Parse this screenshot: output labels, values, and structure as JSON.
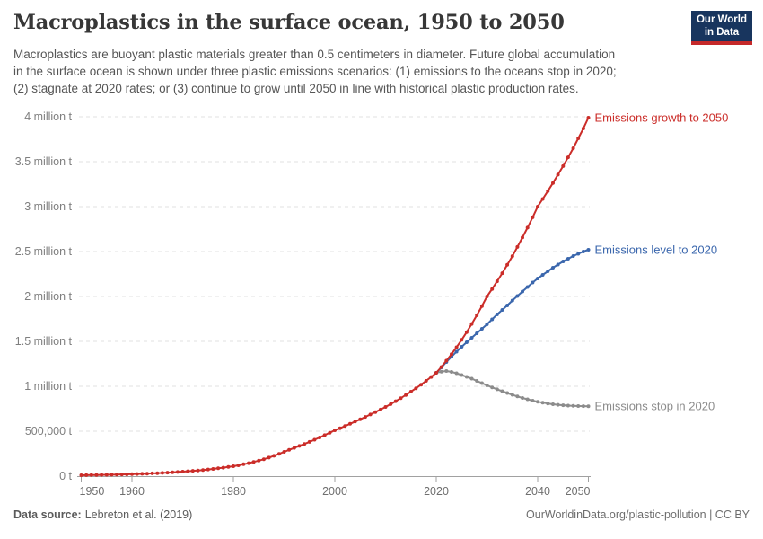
{
  "header": {
    "title": "Macroplastics in the surface ocean, 1950 to 2050",
    "subtitle": "Macroplastics are buoyant plastic materials greater than 0.5 centimeters in diameter. Future global accumulation\nin the surface ocean is shown under three plastic emissions scenarios: (1) emissions to the oceans stop in 2020;\n(2) stagnate at 2020 rates; or (3) continue to grow until 2050 in line with historical plastic production rates.",
    "logo": {
      "line1": "Our World",
      "line2": "in Data",
      "bg_color": "#18355E",
      "stripe_color": "#C5292A"
    }
  },
  "footer": {
    "source_label": "Data source:",
    "source_value": "Lebreton et al. (2019)",
    "credit": "OurWorldinData.org/plastic-pollution | CC BY"
  },
  "chart_data": {
    "type": "line",
    "title": "Macroplastics in the surface ocean, 1950 to 2050",
    "xlabel": "",
    "ylabel": "",
    "unit": "tonnes",
    "xlim": [
      1950,
      2050
    ],
    "ylim_million_t": [
      0,
      4
    ],
    "grid": true,
    "legend_position": "end-of-line-labels",
    "y_ticks": [
      {
        "value": 0,
        "label": "0 t"
      },
      {
        "value": 0.5,
        "label": "500,000 t"
      },
      {
        "value": 1,
        "label": "1 million t"
      },
      {
        "value": 1.5,
        "label": "1.5 million t"
      },
      {
        "value": 2,
        "label": "2 million t"
      },
      {
        "value": 2.5,
        "label": "2.5 million t"
      },
      {
        "value": 3,
        "label": "3 million t"
      },
      {
        "value": 3.5,
        "label": "3.5 million t"
      },
      {
        "value": 4,
        "label": "4 million t"
      }
    ],
    "x_ticks": [
      {
        "value": 1950,
        "label": "1950"
      },
      {
        "value": 1960,
        "label": "1960"
      },
      {
        "value": 1980,
        "label": "1980"
      },
      {
        "value": 2000,
        "label": "2000"
      },
      {
        "value": 2020,
        "label": "2020"
      },
      {
        "value": 2040,
        "label": "2040"
      },
      {
        "value": 2050,
        "label": "2050"
      }
    ],
    "series": [
      {
        "name": "Emissions growth to 2050",
        "color": "#CB2D29",
        "start_year": 1950,
        "values_million_t": [
          0.01,
          0.011,
          0.012,
          0.013,
          0.014,
          0.015,
          0.016,
          0.017,
          0.019,
          0.02,
          0.022,
          0.024,
          0.026,
          0.028,
          0.031,
          0.033,
          0.036,
          0.039,
          0.042,
          0.046,
          0.05,
          0.054,
          0.059,
          0.063,
          0.068,
          0.074,
          0.08,
          0.087,
          0.094,
          0.102,
          0.11,
          0.12,
          0.132,
          0.144,
          0.158,
          0.172,
          0.188,
          0.206,
          0.226,
          0.247,
          0.27,
          0.292,
          0.314,
          0.336,
          0.358,
          0.381,
          0.405,
          0.43,
          0.456,
          0.483,
          0.51,
          0.533,
          0.557,
          0.582,
          0.607,
          0.632,
          0.659,
          0.686,
          0.713,
          0.741,
          0.77,
          0.801,
          0.834,
          0.868,
          0.903,
          0.94,
          0.978,
          1.018,
          1.06,
          1.104,
          1.15,
          1.215,
          1.285,
          1.358,
          1.435,
          1.517,
          1.603,
          1.694,
          1.791,
          1.893,
          2.0,
          2.083,
          2.169,
          2.259,
          2.352,
          2.449,
          2.551,
          2.656,
          2.766,
          2.881,
          3.0,
          3.085,
          3.173,
          3.263,
          3.356,
          3.451,
          3.549,
          3.65,
          3.76,
          3.87,
          3.99
        ]
      },
      {
        "name": "Emissions level to 2020",
        "color": "#3B67AD",
        "start_year": 2020,
        "values_million_t": [
          1.15,
          1.21,
          1.27,
          1.33,
          1.385,
          1.44,
          1.49,
          1.54,
          1.59,
          1.64,
          1.69,
          1.745,
          1.8,
          1.85,
          1.9,
          1.955,
          2.005,
          2.055,
          2.105,
          2.155,
          2.2,
          2.24,
          2.28,
          2.32,
          2.355,
          2.39,
          2.42,
          2.45,
          2.475,
          2.5,
          2.52
        ]
      },
      {
        "name": "Emissions stop in 2020",
        "color": "#8C8C8C",
        "start_year": 2020,
        "values_million_t": [
          1.15,
          1.163,
          1.17,
          1.16,
          1.145,
          1.125,
          1.105,
          1.085,
          1.06,
          1.035,
          1.01,
          0.988,
          0.966,
          0.945,
          0.925,
          0.905,
          0.887,
          0.87,
          0.855,
          0.84,
          0.828,
          0.818,
          0.808,
          0.8,
          0.794,
          0.789,
          0.785,
          0.782,
          0.78,
          0.779,
          0.778
        ]
      }
    ]
  }
}
